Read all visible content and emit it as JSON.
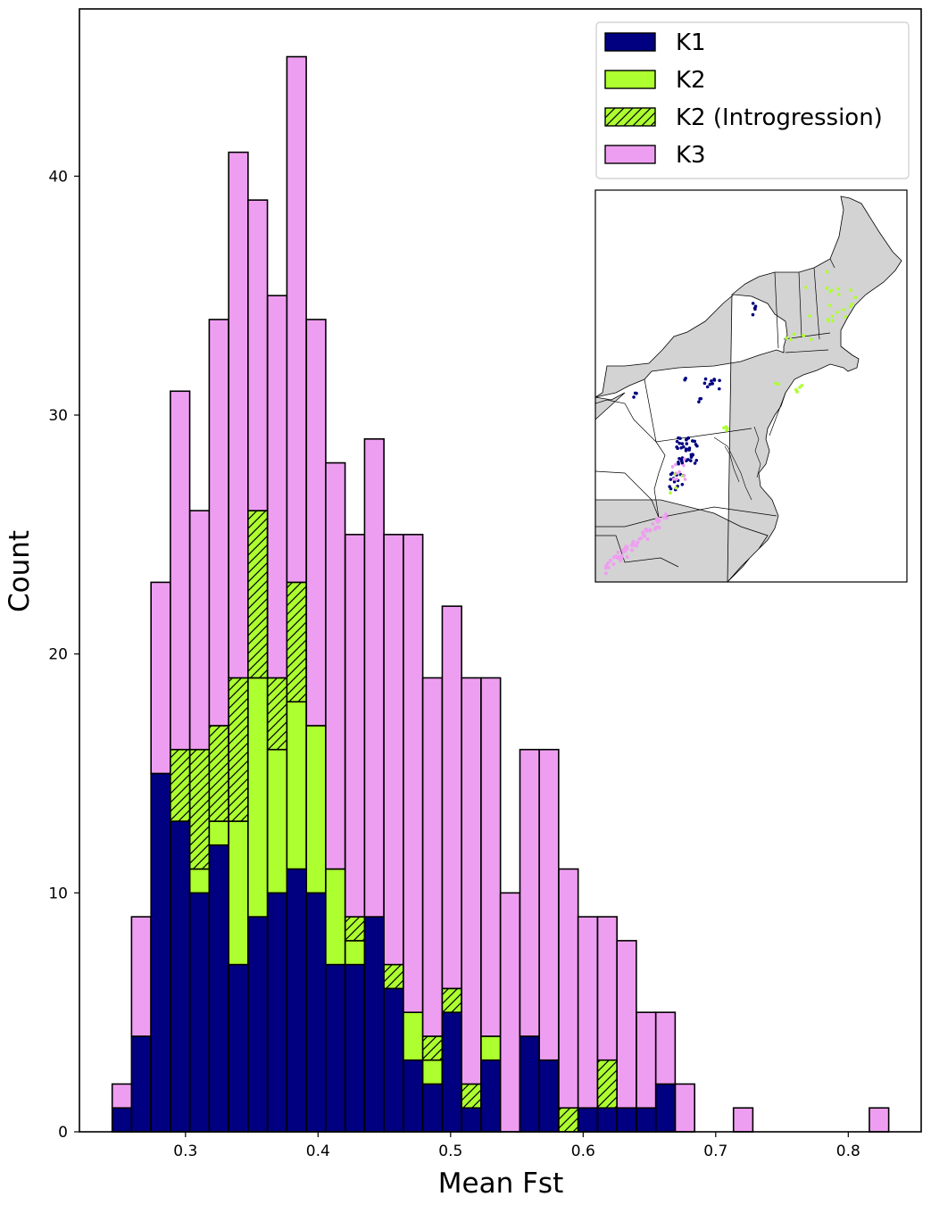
{
  "chart_data": {
    "type": "bar",
    "stacked": true,
    "title": "",
    "xlabel": "Mean Fst",
    "ylabel": "Count",
    "xlim": [
      0.22,
      0.855
    ],
    "ylim": [
      0,
      47
    ],
    "x_ticks": [
      {
        "value": 0.3,
        "label": "0.3"
      },
      {
        "value": 0.4,
        "label": "0.4"
      },
      {
        "value": 0.5,
        "label": "0.5"
      },
      {
        "value": 0.6,
        "label": "0.6"
      },
      {
        "value": 0.7,
        "label": "0.7"
      },
      {
        "value": 0.8,
        "label": "0.8"
      }
    ],
    "y_ticks": [
      {
        "value": 0,
        "label": "0"
      },
      {
        "value": 10,
        "label": "10"
      },
      {
        "value": 20,
        "label": "20"
      },
      {
        "value": 30,
        "label": "30"
      },
      {
        "value": 40,
        "label": "40"
      }
    ],
    "grid": false,
    "legend_position": "top-right",
    "bin_width": 0.0146,
    "bin_start": [
      0.2447,
      0.2593,
      0.274,
      0.2886,
      0.3033,
      0.3179,
      0.3326,
      0.3472,
      0.3619,
      0.3765,
      0.3912,
      0.4058,
      0.4205,
      0.4351,
      0.4497,
      0.4644,
      0.479,
      0.4937,
      0.5083,
      0.523,
      0.5376,
      0.5523,
      0.5669,
      0.5816,
      0.5962,
      0.6109,
      0.6255,
      0.6402,
      0.6548,
      0.6695,
      0.6841,
      0.6988,
      0.7134,
      0.7281,
      0.7427,
      0.7573,
      0.772,
      0.7866,
      0.8013,
      0.8159
    ],
    "series": [
      {
        "name": "K1",
        "color": "#000080",
        "pattern": "solid",
        "values": [
          1,
          4,
          15,
          13,
          10,
          12,
          7,
          9,
          10,
          11,
          10,
          7,
          7,
          9,
          6,
          3,
          2,
          5,
          1,
          3,
          0,
          4,
          3,
          0,
          1,
          1,
          1,
          1,
          2,
          0,
          0,
          0,
          0,
          0,
          0,
          0,
          0,
          0,
          0,
          0
        ]
      },
      {
        "name": "K2",
        "color": "#adff2f",
        "pattern": "solid",
        "values": [
          0,
          0,
          0,
          0,
          1,
          1,
          6,
          10,
          6,
          7,
          7,
          4,
          1,
          0,
          0,
          2,
          1,
          0,
          0,
          1,
          0,
          0,
          0,
          0,
          0,
          0,
          0,
          0,
          0,
          0,
          0,
          0,
          0,
          0,
          0,
          0,
          0,
          0,
          0,
          0
        ]
      },
      {
        "name": "K2 (Introgression)",
        "color": "#adff2f",
        "pattern": "hatch",
        "values": [
          0,
          0,
          0,
          3,
          5,
          4,
          6,
          7,
          3,
          5,
          0,
          0,
          1,
          0,
          1,
          0,
          1,
          1,
          1,
          0,
          0,
          0,
          0,
          1,
          0,
          2,
          0,
          0,
          0,
          0,
          0,
          0,
          0,
          0,
          0,
          0,
          0,
          0,
          0,
          0
        ]
      },
      {
        "name": "K3",
        "color": "#ee9ef0",
        "pattern": "solid",
        "values": [
          1,
          5,
          8,
          15,
          10,
          17,
          22,
          13,
          16,
          22,
          17,
          17,
          16,
          20,
          18,
          20,
          15,
          16,
          17,
          15,
          10,
          12,
          13,
          10,
          8,
          6,
          7,
          4,
          3,
          2,
          0,
          0,
          1,
          0,
          0,
          0,
          0,
          0,
          0,
          1
        ]
      }
    ]
  },
  "inset_map": {
    "land_color": "#d3d3d3",
    "water_color": "#ffffff",
    "point_groups": [
      {
        "series": "K1",
        "color": "#000080"
      },
      {
        "series": "K2",
        "color": "#adff2f"
      },
      {
        "series": "K3",
        "color": "#ee9ef0"
      }
    ]
  }
}
